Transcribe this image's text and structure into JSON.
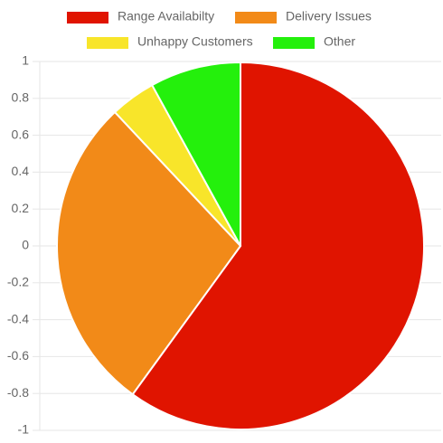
{
  "chart_data": {
    "type": "pie",
    "categories": [
      "Range Availabilty",
      "Delivery Issues",
      "Unhappy Customers",
      "Other"
    ],
    "values": [
      60,
      28,
      4,
      8
    ],
    "colors": [
      "#e01400",
      "#f28a18",
      "#f8e52a",
      "#24f00c"
    ],
    "ylim": [
      -1,
      1
    ],
    "yticks": [
      1,
      0.8,
      0.6,
      0.4,
      0.2,
      0,
      -0.2,
      -0.4,
      -0.6,
      -0.8,
      -1
    ],
    "grid": true,
    "legend": "top"
  }
}
